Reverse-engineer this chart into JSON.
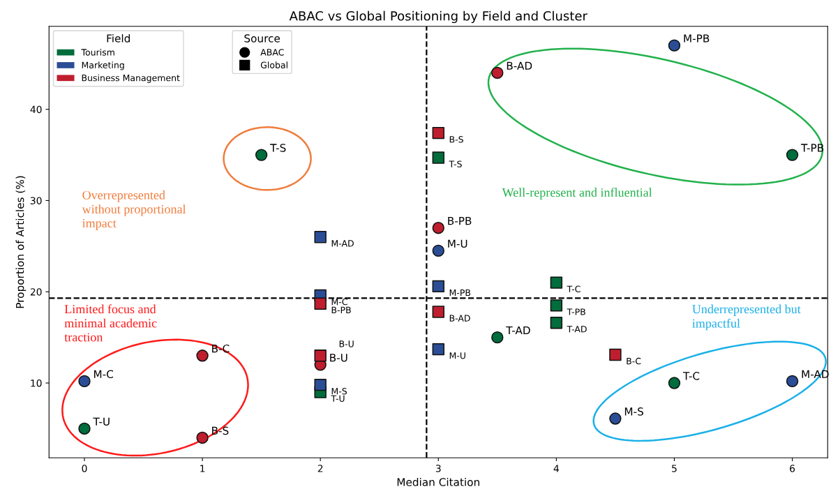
{
  "chart_data": {
    "type": "scatter",
    "title": "ABAC vs Global Positioning by Field and Cluster",
    "xlabel": "Median Citation",
    "ylabel": "Proportion of Articles (%)",
    "xlim": [
      -0.3,
      6.3
    ],
    "ylim": [
      1.8,
      49.1
    ],
    "xticks": [
      0,
      1,
      2,
      3,
      4,
      5,
      6
    ],
    "yticks": [
      10,
      20,
      30,
      40
    ],
    "grid": false,
    "legend": "top left",
    "legend_title": "Field",
    "series": [
      {
        "name": "Tourism",
        "marker": "circle",
        "color": "#006d3c",
        "x": [
          1.5,
          6,
          3.5,
          5,
          0
        ],
        "values": [
          35,
          35,
          15,
          10,
          5
        ],
        "value_labels": [
          "T-S",
          "T-PB",
          "T-AD",
          "T-C",
          "T-U"
        ]
      },
      {
        "name": "Marketing",
        "marker": "circle",
        "color": "#2a4d96",
        "x": [
          5,
          3,
          0,
          6,
          4.5
        ],
        "values": [
          47,
          24.5,
          10.2,
          10.2,
          6.1
        ],
        "value_labels": [
          "M-PB",
          "M-U",
          "M-C",
          "M-AD",
          "M-S"
        ]
      },
      {
        "name": "Business Management",
        "marker": "circle",
        "color": "#bf1e2e",
        "x": [
          3.5,
          3,
          1,
          1,
          2
        ],
        "values": [
          44,
          27,
          13,
          4,
          12
        ],
        "value_labels": [
          "B-AD",
          "B-PB",
          "B-C",
          "B-S",
          "B-U"
        ]
      },
      {
        "marker": "square",
        "color": "#006d3c",
        "x": [
          3,
          4,
          4,
          4,
          2
        ],
        "values": [
          34.7,
          21,
          18.5,
          16.6,
          9
        ],
        "value_labels": [
          "T-S",
          "T-C",
          "T-PB",
          "T-AD",
          "T-U"
        ]
      },
      {
        "marker": "square",
        "color": "#2a4d96",
        "x": [
          2,
          2,
          3,
          3,
          2
        ],
        "values": [
          26,
          19.6,
          20.6,
          13.7,
          9.8
        ],
        "value_labels": [
          "M-AD",
          "M-C",
          "M-PB",
          "M-U",
          "M-S"
        ]
      },
      {
        "marker": "square",
        "color": "#bf1e2e",
        "x": [
          3,
          2,
          3,
          4.5,
          2
        ],
        "values": [
          37.4,
          18.7,
          17.8,
          13.1,
          13
        ],
        "value_labels": [
          "B-S",
          "B-PB",
          "B-AD",
          "B-C",
          "B-U"
        ]
      }
    ],
    "ref_lines": [
      {
        "axis": "x",
        "value": 2.9,
        "color": "#000000",
        "line_style": "dashed"
      },
      {
        "axis": "y",
        "value": 19.3,
        "color": "#000000",
        "line_style": "dashed"
      }
    ],
    "annotations": [
      "Overrepresented\nwithout proportional\nimpact",
      "Well-represent and influential",
      "Limited focus and\nminimal academic\ntraction",
      "Underrepresented but\nimpactful",
      "Source",
      "ABAC",
      "Global"
    ]
  }
}
